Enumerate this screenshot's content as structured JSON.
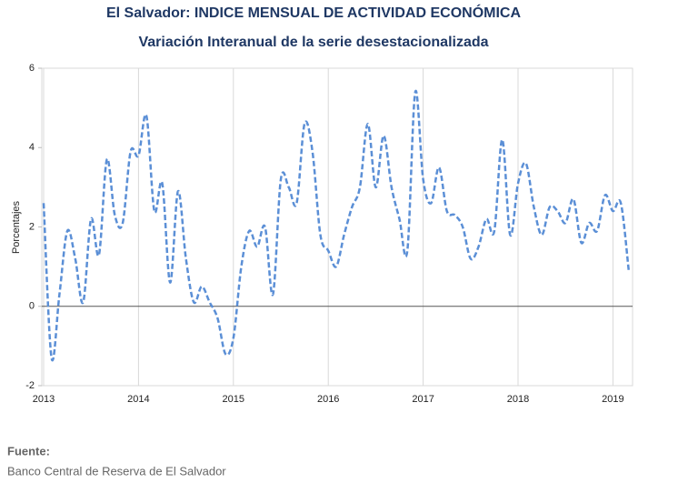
{
  "chart_data": {
    "type": "line",
    "title": "El Salvador: INDICE MENSUAL DE ACTIVIDAD ECONÓMICA",
    "subtitle": "Variación Interanual de la serie desestacionalizada",
    "y_label": "Porcentajes",
    "source_label": "Fuente:",
    "source": "Banco Central de Reserva de El Salvador",
    "categories": [
      "2013",
      null,
      null,
      null,
      null,
      null,
      null,
      null,
      null,
      null,
      null,
      null,
      "2014",
      null,
      null,
      null,
      null,
      null,
      null,
      null,
      null,
      null,
      null,
      null,
      "2015",
      null,
      null,
      null,
      null,
      null,
      null,
      null,
      null,
      null,
      null,
      null,
      "2016",
      null,
      null,
      null,
      null,
      null,
      null,
      null,
      null,
      null,
      null,
      null,
      "2017",
      null,
      null,
      null,
      null,
      null,
      null,
      null,
      null,
      null,
      null,
      null,
      "2018",
      null,
      null,
      null,
      null,
      null,
      null,
      null,
      null,
      null,
      null,
      null,
      "2019",
      null,
      null
    ],
    "series": [
      {
        "name": "Variación interanual",
        "color": "#5b8fd6",
        "values": [
          2.6,
          -1.3,
          0.3,
          1.9,
          1.2,
          0.1,
          2.2,
          1.3,
          3.7,
          2.3,
          2.1,
          3.9,
          3.8,
          4.8,
          2.4,
          3.1,
          0.6,
          2.9,
          1.2,
          0.1,
          0.5,
          0.1,
          -0.3,
          -1.2,
          -0.8,
          1.0,
          1.9,
          1.5,
          2.0,
          0.3,
          3.2,
          3.0,
          2.6,
          4.6,
          3.9,
          1.8,
          1.4,
          1.0,
          1.8,
          2.5,
          3.0,
          4.6,
          3.0,
          4.3,
          3.0,
          2.2,
          1.4,
          5.4,
          3.2,
          2.6,
          3.5,
          2.4,
          2.3,
          2.0,
          1.2,
          1.5,
          2.2,
          1.9,
          4.2,
          1.8,
          3.1,
          3.6,
          2.5,
          1.8,
          2.5,
          2.4,
          2.1,
          2.7,
          1.6,
          2.1,
          1.9,
          2.8,
          2.4,
          2.6,
          0.9
        ]
      }
    ],
    "ylim": [
      -2,
      6
    ],
    "yticks": [
      -2,
      0,
      2,
      4,
      6
    ],
    "grid": true,
    "dashed": true
  }
}
